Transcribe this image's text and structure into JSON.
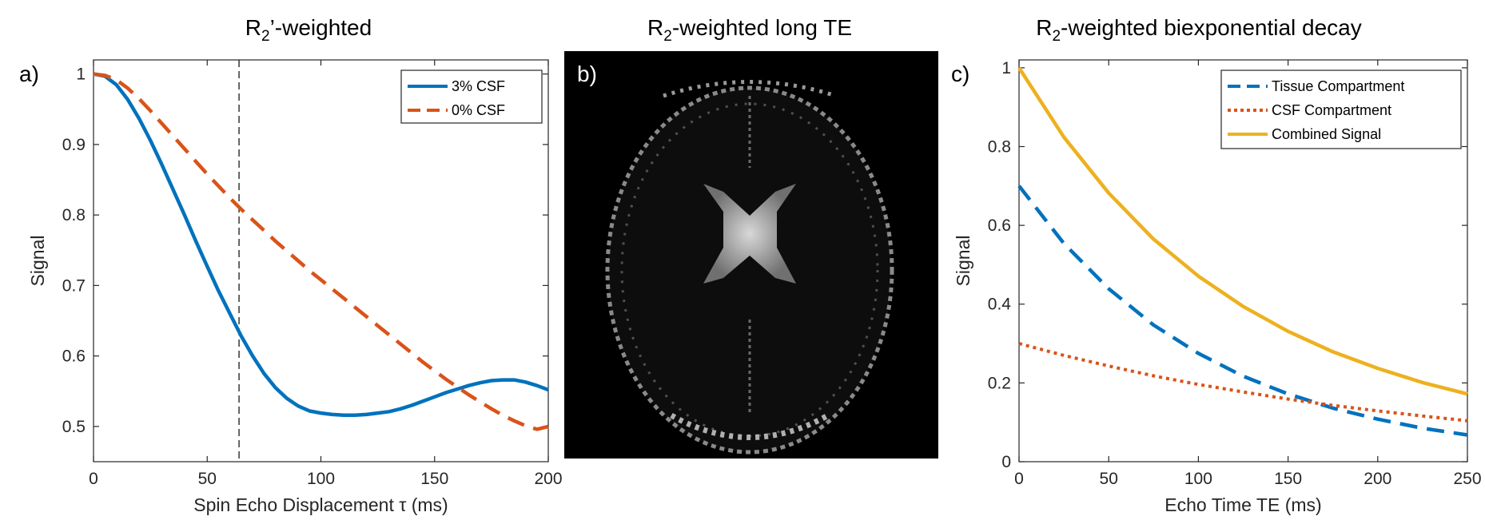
{
  "titles": {
    "a": {
      "main": "R",
      "sub": "2",
      "rest": "’-weighted"
    },
    "b": {
      "main": "R",
      "sub": "2",
      "rest": "-weighted long TE"
    },
    "c": {
      "main": "R",
      "sub": "2",
      "rest": "-weighted biexponential decay"
    }
  },
  "panel_labels": {
    "a": "a)",
    "b": "b)",
    "c": "c)"
  },
  "colors": {
    "blue": "#0072BD",
    "orange": "#D95319",
    "yellow": "#EDB120",
    "axis": "#262626",
    "brain_bg": "#000000"
  },
  "image_panel": {
    "description_icon": "brain-mri-slice-image"
  },
  "chart_data": [
    {
      "id": "a",
      "type": "line",
      "xlabel": "Spin Echo Displacement τ (ms)",
      "ylabel": "Signal",
      "xlim": [
        0,
        200
      ],
      "ylim": [
        0.45,
        1.02
      ],
      "xticks": [
        0,
        50,
        100,
        150,
        200
      ],
      "yticks": [
        0.5,
        0.6,
        0.7,
        0.8,
        0.9,
        1
      ],
      "ytick_labels": [
        "0.5",
        "0.6",
        "0.7",
        "0.8",
        "0.9",
        "1"
      ],
      "grid": false,
      "legend_position": "top-right",
      "vline": {
        "x": 64,
        "style": "dashed"
      },
      "series": [
        {
          "name": "3% CSF",
          "color": "#0072BD",
          "style": "solid",
          "x": [
            0,
            5,
            10,
            15,
            20,
            25,
            30,
            35,
            40,
            45,
            50,
            55,
            60,
            65,
            70,
            75,
            80,
            85,
            90,
            95,
            100,
            105,
            110,
            115,
            120,
            125,
            130,
            135,
            140,
            145,
            150,
            155,
            160,
            165,
            170,
            175,
            180,
            185,
            190,
            195,
            200
          ],
          "y": [
            1.0,
            0.997,
            0.985,
            0.964,
            0.937,
            0.906,
            0.872,
            0.836,
            0.8,
            0.763,
            0.727,
            0.692,
            0.66,
            0.628,
            0.6,
            0.575,
            0.555,
            0.54,
            0.529,
            0.522,
            0.519,
            0.517,
            0.516,
            0.516,
            0.517,
            0.519,
            0.521,
            0.525,
            0.53,
            0.536,
            0.542,
            0.548,
            0.553,
            0.558,
            0.562,
            0.565,
            0.566,
            0.566,
            0.563,
            0.558,
            0.552
          ]
        },
        {
          "name": "0% CSF",
          "color": "#D95319",
          "style": "dashed",
          "x": [
            0,
            5,
            10,
            15,
            20,
            25,
            30,
            35,
            40,
            45,
            50,
            55,
            60,
            65,
            70,
            75,
            80,
            85,
            90,
            95,
            100,
            105,
            110,
            115,
            120,
            125,
            130,
            135,
            140,
            145,
            150,
            155,
            160,
            165,
            170,
            175,
            180,
            185,
            190,
            195,
            200
          ],
          "y": [
            1.0,
            0.998,
            0.992,
            0.98,
            0.965,
            0.948,
            0.93,
            0.912,
            0.894,
            0.876,
            0.858,
            0.841,
            0.824,
            0.808,
            0.793,
            0.778,
            0.763,
            0.749,
            0.735,
            0.721,
            0.708,
            0.695,
            0.682,
            0.669,
            0.656,
            0.643,
            0.63,
            0.617,
            0.604,
            0.591,
            0.579,
            0.567,
            0.556,
            0.545,
            0.535,
            0.525,
            0.516,
            0.508,
            0.501,
            0.496,
            0.5
          ]
        }
      ]
    },
    {
      "id": "c",
      "type": "line",
      "xlabel": "Echo Time TE (ms)",
      "ylabel": "Signal",
      "xlim": [
        0,
        250
      ],
      "ylim": [
        0,
        1.02
      ],
      "xticks": [
        0,
        50,
        100,
        150,
        200,
        250
      ],
      "yticks": [
        0,
        0.2,
        0.4,
        0.6,
        0.8,
        1
      ],
      "ytick_labels": [
        "0",
        "0.2",
        "0.4",
        "0.6",
        "0.8",
        "1"
      ],
      "grid": false,
      "legend_position": "top-right",
      "series": [
        {
          "name": "Tissue Compartment",
          "color": "#0072BD",
          "style": "dashed",
          "x": [
            0,
            25,
            50,
            75,
            100,
            125,
            150,
            175,
            200,
            225,
            250
          ],
          "y": [
            0.7,
            0.554,
            0.439,
            0.347,
            0.275,
            0.217,
            0.172,
            0.136,
            0.108,
            0.085,
            0.068
          ]
        },
        {
          "name": "CSF Compartment",
          "color": "#D95319",
          "style": "dotted",
          "x": [
            0,
            25,
            50,
            75,
            100,
            125,
            150,
            175,
            200,
            225,
            250
          ],
          "y": [
            0.3,
            0.27,
            0.243,
            0.218,
            0.196,
            0.177,
            0.159,
            0.143,
            0.129,
            0.116,
            0.104
          ]
        },
        {
          "name": "Combined Signal",
          "color": "#EDB120",
          "style": "solid",
          "x": [
            0,
            25,
            50,
            75,
            100,
            125,
            150,
            175,
            200,
            225,
            250
          ],
          "y": [
            1.0,
            0.824,
            0.682,
            0.565,
            0.471,
            0.394,
            0.331,
            0.279,
            0.237,
            0.201,
            0.172
          ]
        }
      ]
    }
  ]
}
